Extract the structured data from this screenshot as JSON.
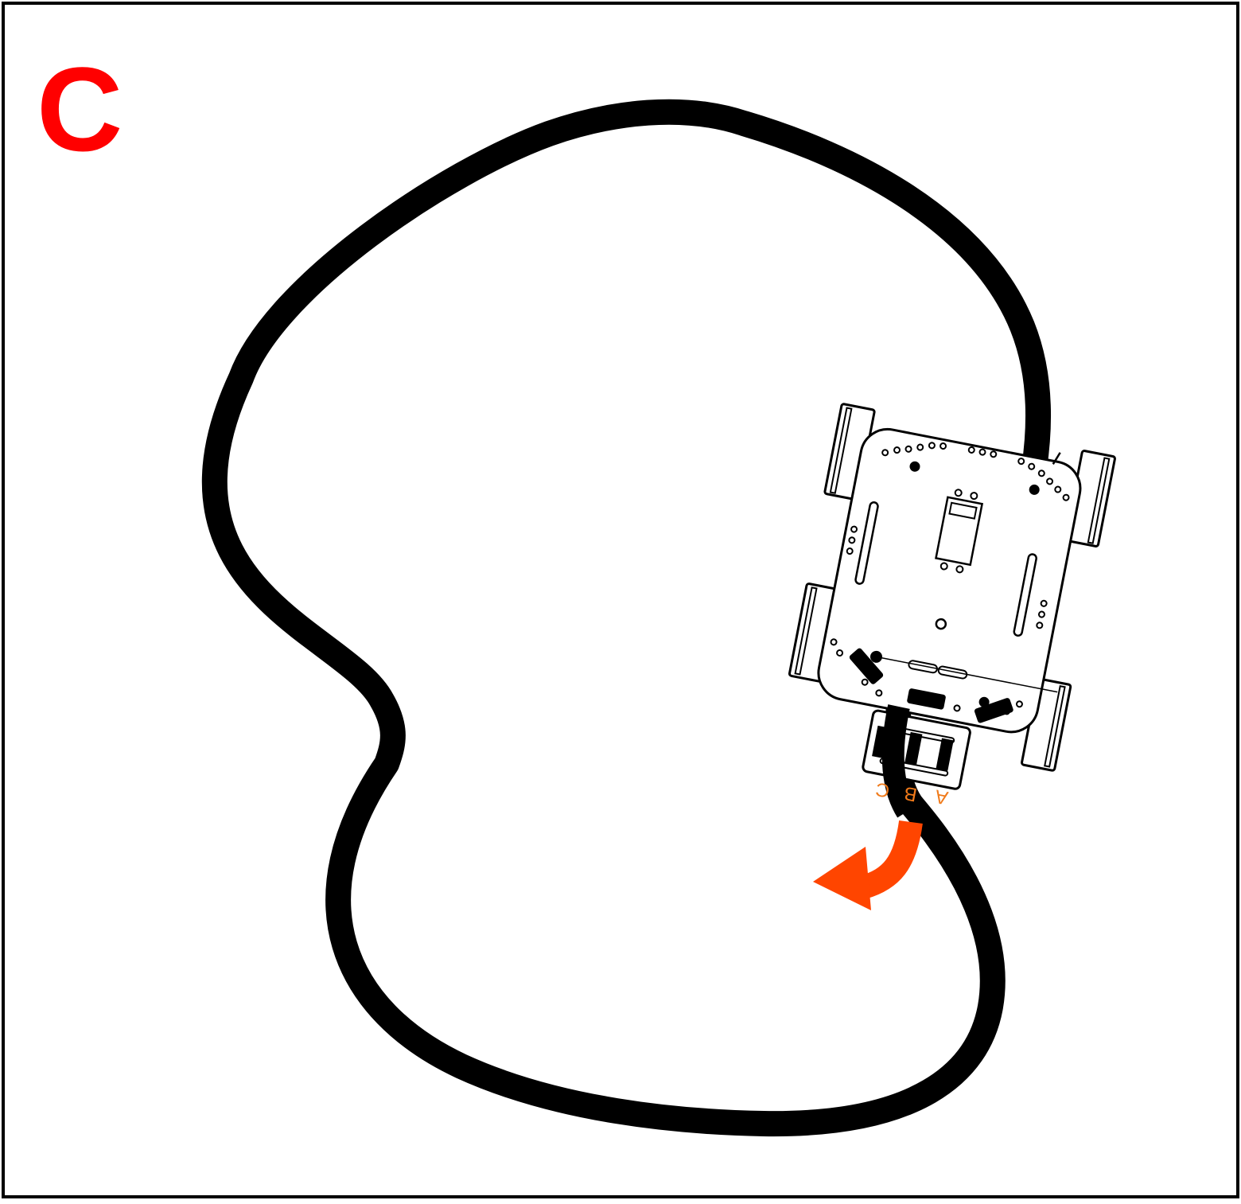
{
  "panel": {
    "label": "C"
  },
  "sensors": {
    "labels": [
      "C",
      "B",
      "A"
    ]
  },
  "colors": {
    "label": "#ff0000",
    "track": "#000000",
    "arrow": "#ff4500",
    "sensor_text": "#f07a1a",
    "board_stroke": "#000000",
    "background": "#ffffff"
  },
  "icons": {
    "turn": "curved-turn-arrow-icon",
    "robot": "robot-car-icon"
  }
}
